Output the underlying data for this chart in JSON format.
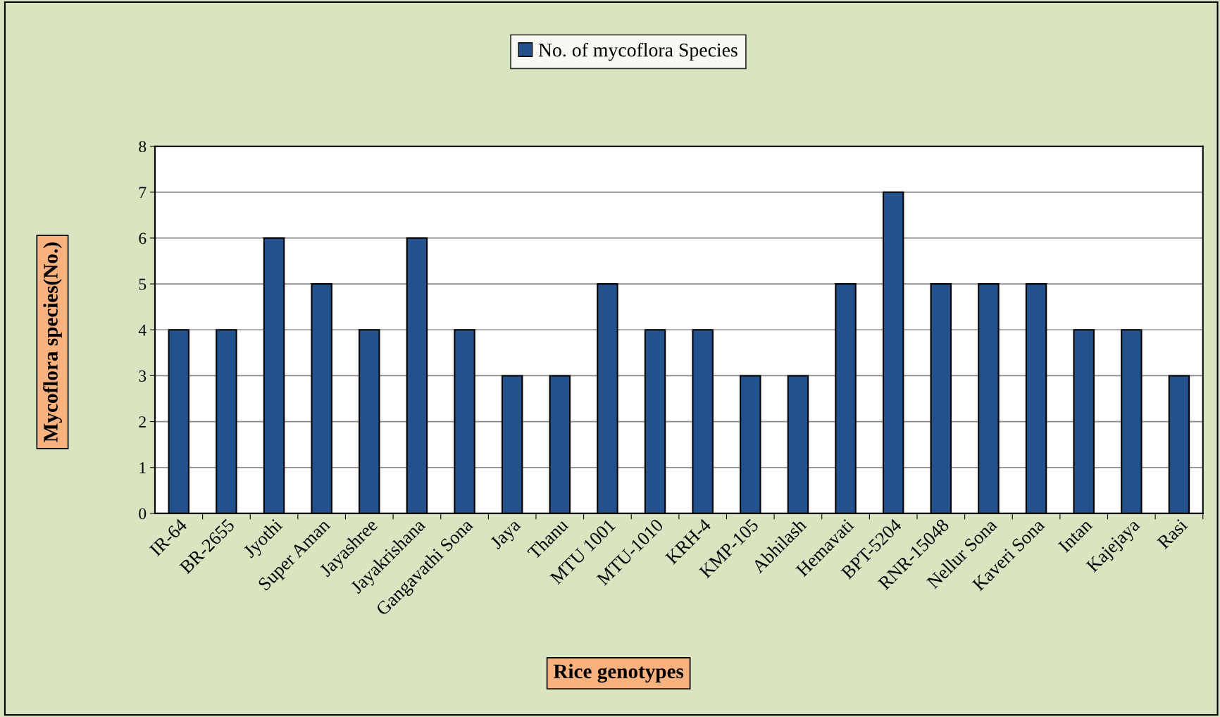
{
  "chart_data": {
    "type": "bar",
    "categories": [
      "IR-64",
      "BR-2655",
      "Jyothi",
      "Super Aman",
      "Jayashree",
      "Jayakrishana",
      "Gangavathi Sona",
      "Jaya",
      "Thanu",
      "MTU 1001",
      "MTU-1010",
      "KRH-4",
      "KMP-105",
      "Abhilash",
      "Hemavati",
      "BPT-5204",
      "RNR-15048",
      "Nellur Sona",
      "Kaveri Sona",
      "Intan",
      "Kajejaya",
      "Rasi"
    ],
    "series": [
      {
        "name": "No. of mycoflora Species",
        "color": "#23518c",
        "values": [
          4,
          4,
          6,
          5,
          4,
          6,
          4,
          3,
          3,
          5,
          4,
          4,
          3,
          3,
          5,
          7,
          5,
          5,
          5,
          4,
          4,
          3
        ]
      }
    ],
    "xlabel": "Rice genotypes",
    "ylabel": "Mycoflora species(No.)",
    "ylim": [
      0,
      8
    ],
    "yticks": [
      0,
      1,
      2,
      3,
      4,
      5,
      6,
      7,
      8
    ],
    "grid": "y",
    "legend": "top"
  }
}
